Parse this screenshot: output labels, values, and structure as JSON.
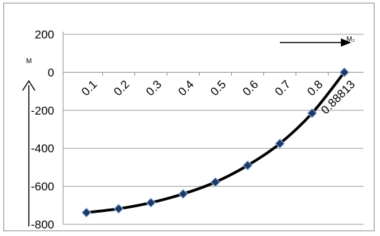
{
  "chart_data": {
    "type": "line",
    "categories": [
      "0.1",
      "0.2",
      "0.3",
      "0.4",
      "0.5",
      "0.6",
      "0.7",
      "0.8",
      "0.88813"
    ],
    "series": [
      {
        "values": [
          -738,
          -718,
          -686,
          -640,
          -578,
          -490,
          -375,
          -215,
          0
        ]
      }
    ],
    "yticks": [
      "200",
      "0",
      "-200",
      "-400",
      "-600",
      "-800"
    ],
    "ylim": [
      -800,
      200
    ],
    "ystep": 200,
    "annotations": {
      "y_arrow_label": "M",
      "x_arrow_label": "M₂"
    },
    "grid": true,
    "colors": {
      "line": "#000000",
      "marker_fill": "#1f3864",
      "marker_edge": "#8eb4e3",
      "grid": "#9a9a9a"
    }
  }
}
